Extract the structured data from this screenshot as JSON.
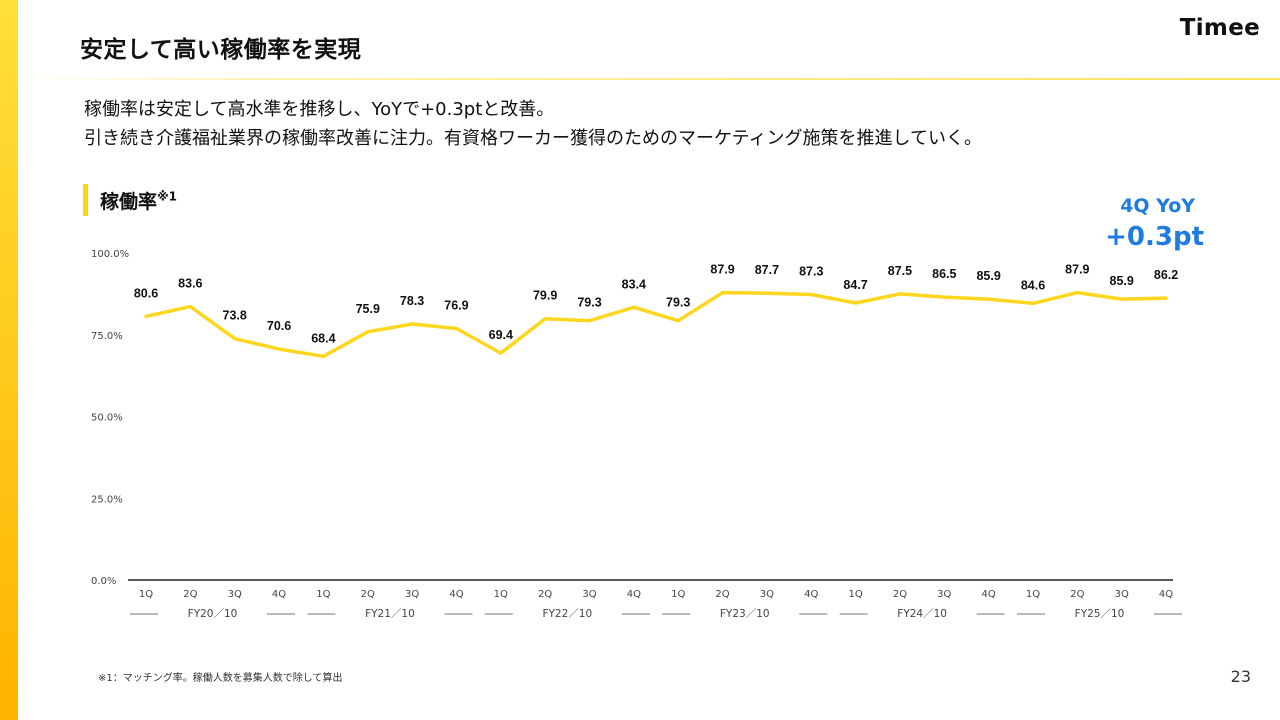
{
  "page": {
    "title": "安定して高い稼働率を実現",
    "logo": "Timee",
    "subtitle_line1": "稼働率は安定して高水準を推移し、YoYで+0.3ptと改善。",
    "subtitle_line2": "引き続き介護福祉業界の稼働率改善に注力。有資格ワーカー獲得のためのマーケティング施策を推進していく。",
    "chart_label": "稼働率",
    "chart_label_note": "※1",
    "yoy_label": "4Q YoY",
    "yoy_value": "+0.3pt",
    "footnote": "※1：マッチング率。稼働人数を募集人数で除して算出",
    "page_number": "23"
  },
  "colors": {
    "accent": "#FFD60A",
    "line": "#FFD61F",
    "yoy": "#1E7BE0"
  },
  "chart_data": {
    "type": "line",
    "title": "稼働率※1",
    "xlabel": "",
    "ylabel": "",
    "ylim": [
      0,
      100
    ],
    "yticks": [
      "0.0%",
      "25.0%",
      "50.0%",
      "75.0%",
      "100.0%"
    ],
    "ytick_values": [
      0,
      25,
      50,
      75,
      100
    ],
    "categories": [
      "1Q",
      "2Q",
      "3Q",
      "4Q",
      "1Q",
      "2Q",
      "3Q",
      "4Q",
      "1Q",
      "2Q",
      "3Q",
      "4Q",
      "1Q",
      "2Q",
      "3Q",
      "4Q",
      "1Q",
      "2Q",
      "3Q",
      "4Q",
      "1Q",
      "2Q",
      "3Q",
      "4Q"
    ],
    "groups": [
      {
        "label": "FY20／10",
        "count": 4
      },
      {
        "label": "FY21／10",
        "count": 4
      },
      {
        "label": "FY22／10",
        "count": 4
      },
      {
        "label": "FY23／10",
        "count": 4
      },
      {
        "label": "FY24／10",
        "count": 4
      },
      {
        "label": "FY25／10",
        "count": 4
      }
    ],
    "series": [
      {
        "name": "稼働率",
        "values": [
          80.6,
          83.6,
          73.8,
          70.6,
          68.4,
          75.9,
          78.3,
          76.9,
          69.4,
          79.9,
          79.3,
          83.4,
          79.3,
          87.9,
          87.7,
          87.3,
          84.7,
          87.5,
          86.5,
          85.9,
          84.6,
          87.9,
          85.9,
          86.2
        ],
        "labels": [
          "80.6",
          "83.6",
          "73.8",
          "70.6",
          "68.4",
          "75.9",
          "78.3",
          "76.9",
          "69.4",
          "79.9",
          "79.3",
          "83.4",
          "79.3",
          "87.9",
          "87.7",
          "87.3",
          "84.7",
          "87.5",
          "86.5",
          "85.9",
          "84.6",
          "87.9",
          "85.9",
          "86.2"
        ]
      }
    ],
    "grid": false,
    "data_labels": true
  }
}
